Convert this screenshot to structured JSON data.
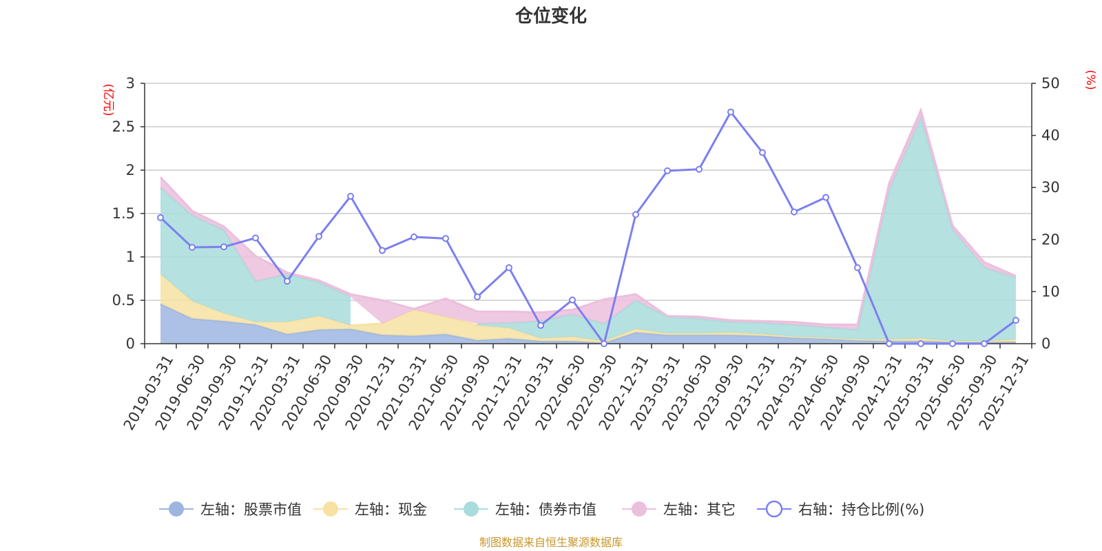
{
  "chart_data": {
    "type": "area",
    "title": "仓位变化",
    "left_axis_unit": "(亿元)",
    "right_axis_unit": "(%)",
    "left_ylim": [
      0,
      3
    ],
    "left_ticks": [
      "0",
      "0.5",
      "1",
      "1.5",
      "2",
      "2.5",
      "3"
    ],
    "right_ylim": [
      0,
      50
    ],
    "right_ticks": [
      "0",
      "10",
      "20",
      "30",
      "40",
      "50"
    ],
    "grid": true,
    "legend_position": "bottom",
    "categories": [
      "2019-03-31",
      "2019-06-30",
      "2019-09-30",
      "2019-12-31",
      "2020-03-31",
      "2020-06-30",
      "2020-09-30",
      "2020-12-31",
      "2021-03-31",
      "2021-06-30",
      "2021-09-30",
      "2021-12-31",
      "2022-03-31",
      "2022-06-30",
      "2022-09-30",
      "2022-12-31",
      "2023-03-31",
      "2023-06-30",
      "2023-09-30",
      "2023-12-31",
      "2024-03-31",
      "2024-06-30",
      "2024-09-30",
      "2024-12-31",
      "2025-03-31",
      "2025-06-30",
      "2025-09-30",
      "2025-12-31"
    ],
    "series": [
      {
        "name": "左轴：股票市值",
        "axis": "left",
        "kind": "stacked-area",
        "color": "#9db6e0",
        "values": [
          0.46,
          0.29,
          0.26,
          0.22,
          0.11,
          0.16,
          0.17,
          0.1,
          0.09,
          0.11,
          0.04,
          0.06,
          0.03,
          0.03,
          0.01,
          0.13,
          0.1,
          0.1,
          0.1,
          0.09,
          0.07,
          0.06,
          0.04,
          0.03,
          0.03,
          0.02,
          0.02,
          0.02
        ]
      },
      {
        "name": "左轴：现金",
        "axis": "left",
        "kind": "stacked-area",
        "color": "#f7e2a3",
        "values": [
          0.34,
          0.2,
          0.09,
          0.03,
          0.14,
          0.16,
          0.04,
          0.13,
          0.3,
          0.2,
          0.17,
          0.12,
          0.03,
          0.05,
          0.02,
          0.04,
          0.02,
          0.02,
          0.03,
          0.02,
          0.01,
          0.01,
          0.01,
          0.02,
          0.03,
          0.01,
          0.01,
          0.03
        ]
      },
      {
        "name": "左轴：债券市值",
        "axis": "left",
        "kind": "stacked-area",
        "color": "#a9dcdc",
        "values": [
          1.0,
          0.99,
          0.96,
          0.47,
          0.55,
          0.39,
          0.33,
          null,
          null,
          null,
          0.02,
          0.06,
          0.2,
          0.26,
          0.2,
          0.33,
          0.19,
          0.17,
          0.12,
          0.13,
          0.14,
          0.12,
          0.11,
          1.72,
          2.55,
          1.29,
          0.85,
          0.71
        ]
      },
      {
        "name": "左轴：其它",
        "axis": "left",
        "kind": "stacked-area",
        "color": "#ecbfdd",
        "values": [
          0.12,
          0.05,
          0.04,
          0.29,
          0.02,
          0.02,
          0.03,
          0.27,
          0.01,
          0.21,
          0.14,
          0.13,
          0.1,
          0.05,
          0.28,
          0.07,
          0.01,
          0.02,
          0.02,
          0.02,
          0.03,
          0.03,
          0.06,
          0.08,
          0.08,
          0.04,
          0.06,
          0.02
        ]
      },
      {
        "name": "右轴：持仓比例(%)",
        "axis": "right",
        "kind": "line",
        "color": "#7b7ff0",
        "values": [
          24.2,
          18.5,
          18.6,
          20.3,
          12.0,
          20.6,
          28.3,
          17.9,
          20.5,
          20.2,
          9.0,
          14.6,
          3.5,
          8.4,
          0,
          24.8,
          33.2,
          33.5,
          44.5,
          36.7,
          25.3,
          28.1,
          14.6,
          0,
          0,
          0,
          0,
          4.5
        ]
      }
    ]
  },
  "source_note": "制图数据来自恒生聚源数据库"
}
